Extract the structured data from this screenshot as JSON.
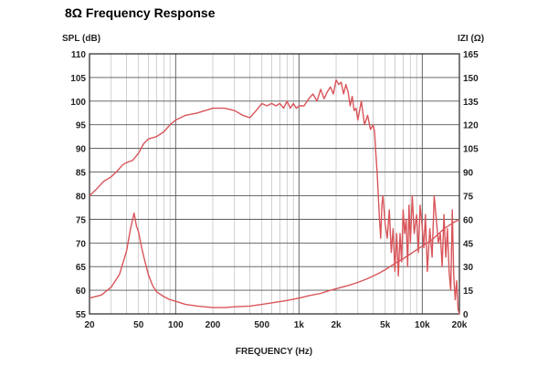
{
  "chart_data": {
    "type": "line",
    "title": "8Ω Frequency Response",
    "xlabel": "FREQUENCY (Hz)",
    "ylabel": "SPL (dB)",
    "y2label": "IZI (Ω)",
    "x_scale": "log",
    "xlim": [
      20,
      20000
    ],
    "ylim": [
      55,
      110
    ],
    "y2lim": [
      0,
      165
    ],
    "x_ticks": [
      20,
      50,
      100,
      200,
      500,
      1000,
      2000,
      5000,
      10000,
      20000
    ],
    "x_tick_labels": [
      "20",
      "50",
      "100",
      "200",
      "500",
      "1k",
      "2k",
      "5k",
      "10k",
      "20k"
    ],
    "y_ticks": [
      110,
      105,
      100,
      95,
      90,
      85,
      80,
      75,
      70,
      65,
      60,
      55
    ],
    "y2_ticks": [
      165,
      150,
      135,
      120,
      105,
      90,
      75,
      60,
      45,
      30,
      15,
      0
    ],
    "grid": true,
    "line_color": "#d9555a",
    "series": [
      {
        "axis": "left",
        "x": [
          20,
          23,
          26,
          30,
          33,
          37,
          40,
          45,
          50,
          55,
          60,
          70,
          80,
          90,
          100,
          120,
          150,
          200,
          250,
          300,
          350,
          400,
          450,
          500,
          550,
          600,
          650,
          700,
          750,
          800,
          850,
          900,
          950,
          1000,
          1100,
          1200,
          1300,
          1400,
          1500,
          1600,
          1700,
          1800,
          1900,
          2000,
          2100,
          2200,
          2300,
          2400,
          2500,
          2600,
          2700,
          2800,
          2900,
          3000,
          3200,
          3400,
          3600,
          3800,
          4000,
          4100,
          4200,
          4300,
          4400,
          4500,
          4600,
          4700,
          4800,
          5000,
          5200,
          5400,
          5600,
          5800,
          6000,
          6200,
          6400,
          6600,
          6800,
          7000,
          7200,
          7400,
          7600,
          7800,
          8000,
          8300,
          8600,
          9000,
          9300,
          9600,
          10000,
          10300,
          10600,
          11000,
          11500,
          12000,
          12500,
          13000,
          13500,
          14000,
          14500,
          15000,
          15500,
          16000,
          16500,
          17000,
          17500,
          18000,
          18500,
          19000,
          19500,
          20000
        ],
        "y": [
          80,
          81.5,
          83,
          84,
          85,
          86.5,
          87,
          87.5,
          89,
          91,
          92,
          92.5,
          93.5,
          95,
          96,
          97,
          97.5,
          98.5,
          98.5,
          98,
          97,
          96.5,
          98,
          99.5,
          99,
          99.5,
          99,
          99.5,
          98.5,
          100,
          98.5,
          99.5,
          98.5,
          99,
          99,
          100.5,
          101.5,
          100,
          102.5,
          100.5,
          102,
          103,
          101.5,
          104.5,
          103.5,
          104,
          101.5,
          103.5,
          102,
          99,
          101,
          98,
          98.5,
          96,
          100,
          95,
          97,
          94,
          95,
          93.5,
          89,
          85,
          80,
          75,
          71,
          78,
          80,
          74,
          71,
          77,
          68,
          73,
          64,
          72,
          63,
          72,
          66,
          77,
          72,
          75,
          65,
          78,
          70,
          80,
          72,
          76,
          68,
          78,
          73,
          69,
          76,
          64,
          73,
          67,
          80,
          75,
          70,
          72,
          65,
          76,
          67,
          73,
          64,
          60,
          77,
          63,
          58,
          62,
          56,
          55
        ]
      },
      {
        "axis": "right",
        "x": [
          20,
          25,
          30,
          35,
          40,
          43,
          46,
          48,
          50,
          53,
          56,
          60,
          65,
          70,
          80,
          90,
          100,
          120,
          150,
          200,
          250,
          300,
          400,
          500,
          600,
          800,
          1000,
          1200,
          1500,
          1800,
          2000,
          2500,
          3000,
          3500,
          4000,
          4500,
          5000,
          6000,
          7000,
          8000,
          10000,
          12000,
          15000,
          18000,
          20000
        ],
        "y": [
          10,
          12,
          17,
          25,
          40,
          54,
          64,
          56,
          52,
          42,
          34,
          25,
          18,
          14,
          11,
          9,
          8,
          6,
          5,
          4,
          4,
          4.5,
          5,
          6,
          7,
          8.5,
          10,
          11.5,
          13,
          15,
          16,
          18,
          20,
          22,
          24,
          26,
          28,
          32,
          35,
          38,
          43,
          47,
          54,
          58,
          60
        ]
      }
    ]
  }
}
